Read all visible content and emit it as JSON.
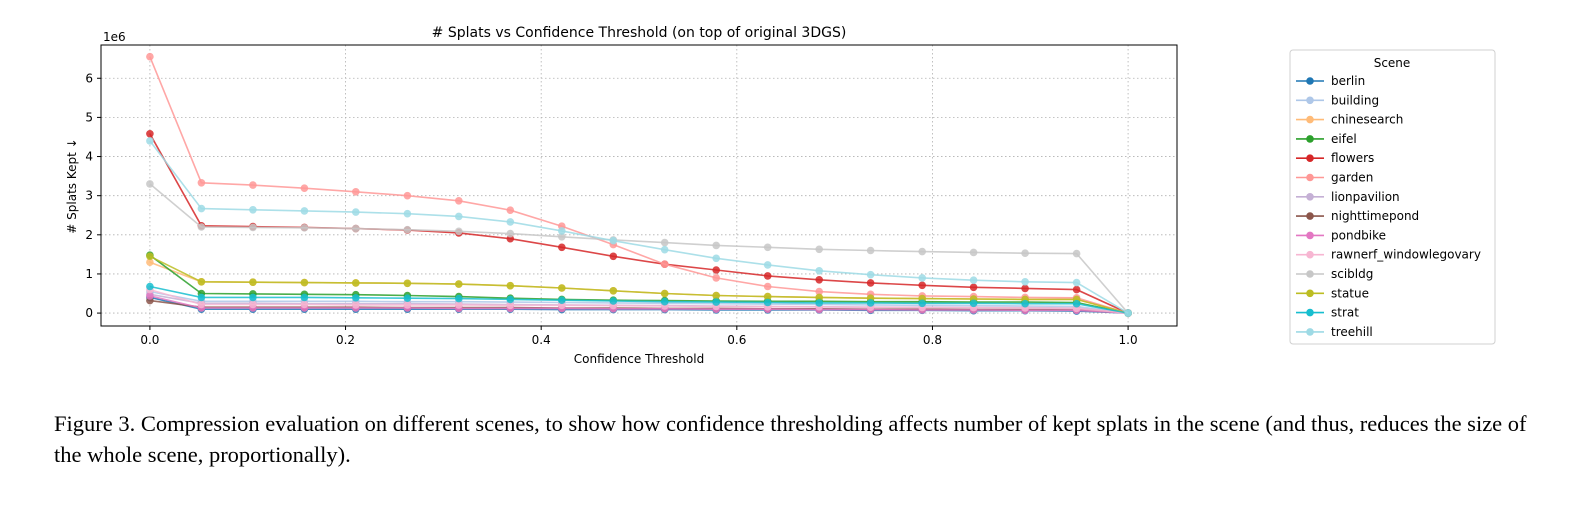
{
  "chart_data": {
    "type": "line",
    "title": "# Splats vs Confidence Threshold (on top of original 3DGS)",
    "xlabel": "Confidence Threshold",
    "ylabel": "# Splats Kept ↓",
    "y_offset_label": "1e6",
    "xlim": [
      -0.05,
      1.05
    ],
    "ylim": [
      -0.33,
      6.85
    ],
    "x_ticks": [
      0.0,
      0.2,
      0.4,
      0.6,
      0.8,
      1.0
    ],
    "x_tick_labels": [
      "0.0",
      "0.2",
      "0.4",
      "0.6",
      "0.8",
      "1.0"
    ],
    "y_ticks": [
      0,
      1,
      2,
      3,
      4,
      5,
      6
    ],
    "y_tick_labels": [
      "0",
      "1",
      "2",
      "3",
      "4",
      "5",
      "6"
    ],
    "grid": true,
    "legend_title": "Scene",
    "legend_position": "outside-right",
    "x": [
      0.0,
      0.0526,
      0.1053,
      0.1579,
      0.2105,
      0.2632,
      0.3158,
      0.3684,
      0.4211,
      0.4737,
      0.5263,
      0.5789,
      0.6316,
      0.6842,
      0.7368,
      0.7895,
      0.8421,
      0.8947,
      0.9474,
      1.0
    ],
    "series": [
      {
        "name": "berlin",
        "color": "#1f77b4",
        "values": [
          0.4,
          0.1,
          0.1,
          0.1,
          0.1,
          0.1,
          0.1,
          0.1,
          0.09,
          0.09,
          0.09,
          0.08,
          0.08,
          0.08,
          0.07,
          0.07,
          0.06,
          0.06,
          0.05,
          0.0
        ]
      },
      {
        "name": "building",
        "color": "#aec7e8",
        "values": [
          0.55,
          0.3,
          0.3,
          0.3,
          0.3,
          0.29,
          0.29,
          0.28,
          0.27,
          0.26,
          0.25,
          0.24,
          0.23,
          0.22,
          0.21,
          0.2,
          0.19,
          0.18,
          0.17,
          0.0
        ]
      },
      {
        "name": "chinesearch",
        "color": "#ffbb78",
        "values": [
          1.3,
          0.8,
          0.79,
          0.78,
          0.77,
          0.76,
          0.74,
          0.7,
          0.64,
          0.57,
          0.5,
          0.45,
          0.42,
          0.4,
          0.38,
          0.37,
          0.36,
          0.35,
          0.35,
          0.0
        ]
      },
      {
        "name": "eifel",
        "color": "#2ca02c",
        "values": [
          1.48,
          0.5,
          0.49,
          0.48,
          0.47,
          0.45,
          0.42,
          0.38,
          0.35,
          0.33,
          0.32,
          0.31,
          0.3,
          0.3,
          0.29,
          0.29,
          0.28,
          0.28,
          0.27,
          0.0
        ]
      },
      {
        "name": "flowers",
        "color": "#d62728",
        "values": [
          4.58,
          2.23,
          2.21,
          2.19,
          2.16,
          2.12,
          2.05,
          1.9,
          1.68,
          1.45,
          1.25,
          1.1,
          0.95,
          0.85,
          0.77,
          0.71,
          0.66,
          0.63,
          0.6,
          0.0
        ]
      },
      {
        "name": "garden",
        "color": "#ff9896",
        "values": [
          6.55,
          3.33,
          3.27,
          3.19,
          3.1,
          3.0,
          2.87,
          2.63,
          2.22,
          1.75,
          1.25,
          0.9,
          0.68,
          0.55,
          0.48,
          0.44,
          0.42,
          0.4,
          0.39,
          0.0
        ]
      },
      {
        "name": "lionpavilion",
        "color": "#c5b0d5",
        "values": [
          0.48,
          0.25,
          0.25,
          0.24,
          0.24,
          0.24,
          0.23,
          0.22,
          0.21,
          0.2,
          0.19,
          0.18,
          0.17,
          0.16,
          0.15,
          0.15,
          0.14,
          0.14,
          0.13,
          0.0
        ]
      },
      {
        "name": "nighttimepond",
        "color": "#8c564b",
        "values": [
          0.32,
          0.15,
          0.15,
          0.15,
          0.15,
          0.14,
          0.14,
          0.14,
          0.13,
          0.13,
          0.12,
          0.12,
          0.11,
          0.11,
          0.1,
          0.1,
          0.09,
          0.09,
          0.09,
          0.0
        ]
      },
      {
        "name": "pondbike",
        "color": "#e377c2",
        "values": [
          0.44,
          0.13,
          0.13,
          0.13,
          0.13,
          0.13,
          0.12,
          0.12,
          0.12,
          0.11,
          0.11,
          0.1,
          0.1,
          0.09,
          0.09,
          0.08,
          0.08,
          0.07,
          0.07,
          0.0
        ]
      },
      {
        "name": "rawnerf_windowlegovary",
        "color": "#f7b6d2",
        "values": [
          0.6,
          0.22,
          0.22,
          0.22,
          0.21,
          0.21,
          0.21,
          0.2,
          0.2,
          0.19,
          0.18,
          0.17,
          0.16,
          0.16,
          0.15,
          0.14,
          0.14,
          0.13,
          0.12,
          0.0
        ]
      },
      {
        "name": "scibldg",
        "color": "#c7c7c7",
        "values": [
          3.3,
          2.2,
          2.19,
          2.18,
          2.16,
          2.13,
          2.09,
          2.03,
          1.95,
          1.87,
          1.8,
          1.73,
          1.68,
          1.63,
          1.6,
          1.57,
          1.55,
          1.53,
          1.52,
          0.0
        ]
      },
      {
        "name": "statue",
        "color": "#bcbd22",
        "values": [
          1.45,
          0.8,
          0.79,
          0.78,
          0.77,
          0.76,
          0.74,
          0.7,
          0.64,
          0.57,
          0.5,
          0.45,
          0.42,
          0.4,
          0.38,
          0.37,
          0.36,
          0.35,
          0.35,
          0.0
        ]
      },
      {
        "name": "strat",
        "color": "#17becf",
        "values": [
          0.68,
          0.4,
          0.4,
          0.4,
          0.39,
          0.38,
          0.37,
          0.35,
          0.33,
          0.31,
          0.29,
          0.28,
          0.27,
          0.26,
          0.26,
          0.25,
          0.25,
          0.24,
          0.24,
          0.0
        ]
      },
      {
        "name": "treehill",
        "color": "#9edae5",
        "values": [
          4.4,
          2.67,
          2.64,
          2.61,
          2.58,
          2.54,
          2.47,
          2.33,
          2.1,
          1.85,
          1.62,
          1.4,
          1.23,
          1.08,
          0.98,
          0.9,
          0.84,
          0.8,
          0.78,
          0.0
        ]
      }
    ]
  },
  "caption": "Figure 3. Compression evaluation on different scenes, to show how confidence thresholding affects number of kept splats in the scene (and thus, reduces the size of the whole scene, proportionally)."
}
